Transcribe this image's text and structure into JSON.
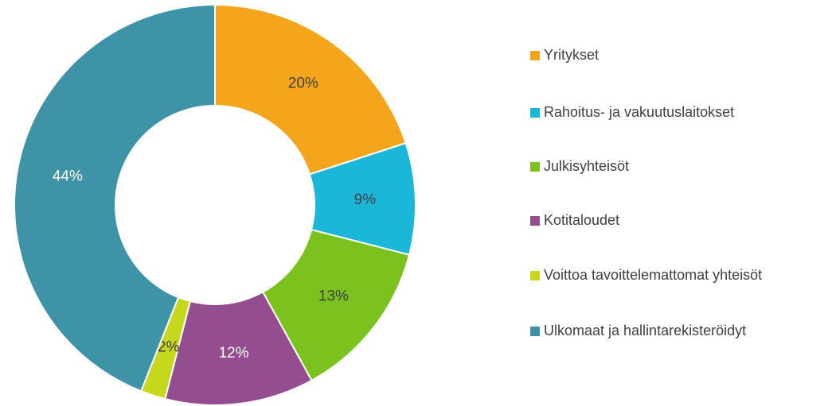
{
  "chart_data": {
    "type": "donut",
    "categories": [
      "Yritykset",
      "Rahoitus- ja vakuutuslaitokset",
      "Julkisyhteisöt",
      "Kotitaloudet",
      "Voittoa tavoittelemattomat yhteisöt",
      "Ulkomaat ja hallintarekisteröidyt"
    ],
    "values": [
      20,
      9,
      13,
      12,
      2,
      44
    ],
    "value_labels": [
      "20%",
      "9%",
      "13%",
      "12%",
      "2%",
      "44%"
    ],
    "colors": [
      "#f5a51c",
      "#1ab7d9",
      "#7cc21e",
      "#944d8e",
      "#c6d81e",
      "#3e94a6"
    ],
    "legend": "right"
  }
}
